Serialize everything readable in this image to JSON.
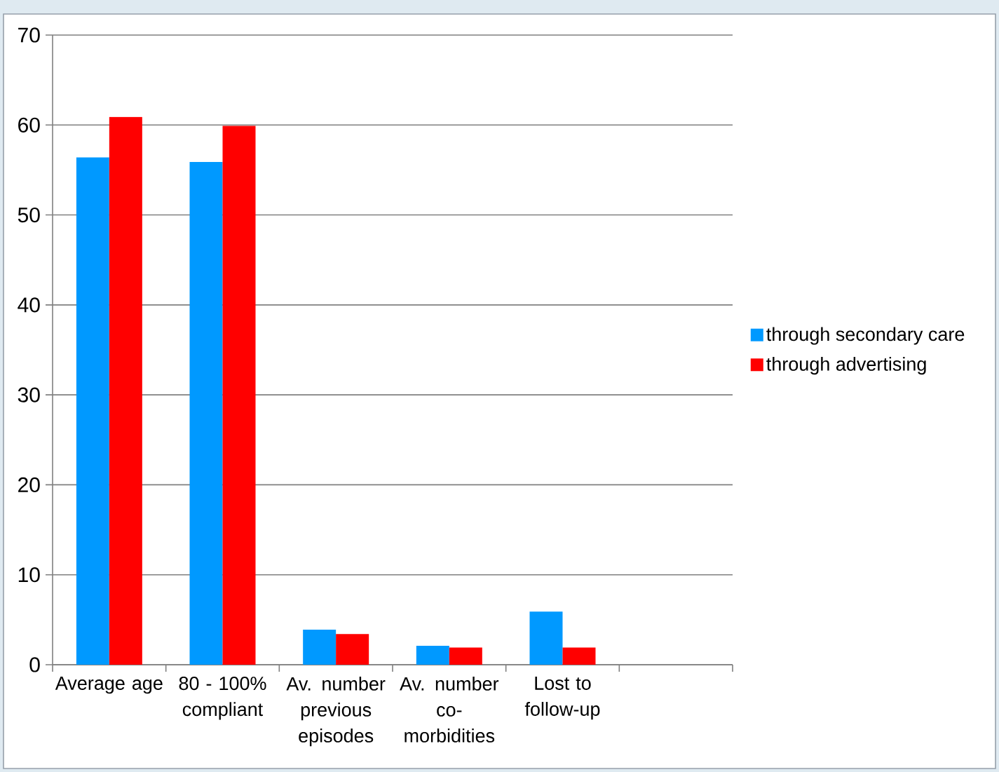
{
  "chart_data": {
    "type": "bar",
    "categories": [
      "Average age",
      "80 - 100% compliant",
      "Av. number previous episodes",
      "Av. number co-morbidities",
      "Lost to follow-up",
      null
    ],
    "series": [
      {
        "name": "through secondary care",
        "color": "#0099ff",
        "values": [
          56.4,
          55.9,
          3.9,
          2.1,
          5.9,
          null
        ]
      },
      {
        "name": "through advertising",
        "color": "#ff0000",
        "values": [
          60.9,
          59.9,
          3.4,
          1.9,
          1.9,
          null
        ]
      }
    ],
    "ylim": [
      0,
      70
    ],
    "yticks": [
      0,
      10,
      20,
      30,
      40,
      50,
      60,
      70
    ],
    "grid": "y",
    "legend": "right"
  }
}
